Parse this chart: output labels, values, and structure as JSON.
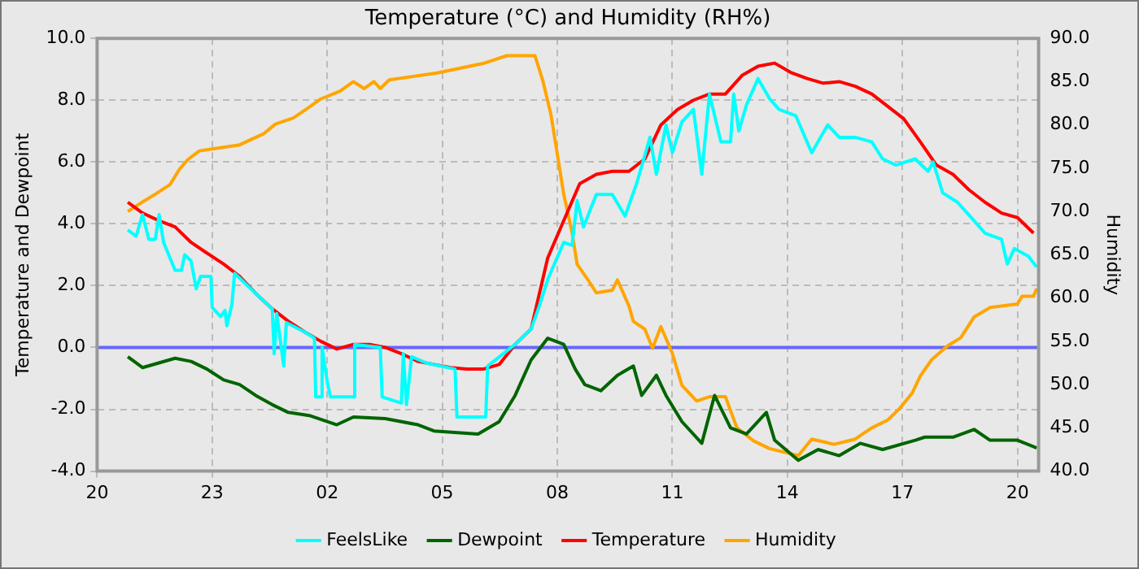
{
  "chart_data": {
    "type": "line",
    "title": "Temperature (°C) and Humidity (RH%)",
    "ylabel": "Temperature and Dewpoint",
    "y2label": "Humidity",
    "xlim": [
      "--01-01T20:00",
      "--01-02T20:33"
    ],
    "xticks": [
      {
        "value": "--01-01T20:00",
        "label": "20"
      },
      {
        "value": "--01-01T23:00",
        "label": "23"
      },
      {
        "value": "--01-02T02:00",
        "label": "02"
      },
      {
        "value": "--01-02T05:00",
        "label": "05"
      },
      {
        "value": "--01-02T08:00",
        "label": "08"
      },
      {
        "value": "--01-02T11:00",
        "label": "11"
      },
      {
        "value": "--01-02T14:00",
        "label": "14"
      },
      {
        "value": "--01-02T17:00",
        "label": "17"
      },
      {
        "value": "--01-02T20:00",
        "label": "20"
      }
    ],
    "ylim": [
      -4,
      10
    ],
    "yticks": [
      {
        "value": -4,
        "label": "-4.0"
      },
      {
        "value": -2,
        "label": "-2.0"
      },
      {
        "value": 0,
        "label": "0.0"
      },
      {
        "value": 2,
        "label": "2.0"
      },
      {
        "value": 4,
        "label": "4.0"
      },
      {
        "value": 6,
        "label": "6.0"
      },
      {
        "value": 8,
        "label": "8.0"
      },
      {
        "value": 10,
        "label": "10.0"
      }
    ],
    "y2lim": [
      40,
      90
    ],
    "y2ticks": [
      {
        "value": 40,
        "label": "40.0"
      },
      {
        "value": 45,
        "label": "45.0"
      },
      {
        "value": 50,
        "label": "50.0"
      },
      {
        "value": 55,
        "label": "55.0"
      },
      {
        "value": 60,
        "label": "60.0"
      },
      {
        "value": 65,
        "label": "65.0"
      },
      {
        "value": 70,
        "label": "70.0"
      },
      {
        "value": 75,
        "label": "75.0"
      },
      {
        "value": 80,
        "label": "80.0"
      },
      {
        "value": 85,
        "label": "85.0"
      },
      {
        "value": 90,
        "label": "90.0"
      }
    ],
    "grid": true,
    "legend": "bottom",
    "marker": "none",
    "line_style": "solid",
    "ref_lines": [
      {
        "axis": "y",
        "value": 0,
        "color": "#6666ff"
      }
    ],
    "series": [
      {
        "name": "FeelsLike",
        "color": "#00ffff",
        "x": [
          "--01-01T20:48",
          "--01-01T21:01",
          "--01-01T21:11",
          "--01-01T21:21",
          "--01-01T21:31",
          "--01-01T21:37",
          "--01-01T21:44",
          "--01-01T21:54",
          "--01-01T22:02",
          "--01-01T22:12",
          "--01-01T22:17",
          "--01-01T22:27",
          "--01-01T22:35",
          "--01-01T22:42",
          "--01-01T22:58",
          "--01-01T23:00",
          "--01-01T23:13",
          "--01-01T23:20",
          "--01-01T23:23",
          "--01-01T23:31",
          "--01-01T23:35",
          "--01-02T00:08",
          "--01-02T00:34",
          "--01-02T00:37",
          "--01-02T00:41",
          "--01-02T00:52",
          "--01-02T00:56",
          "--01-02T01:25",
          "--01-02T01:40",
          "--01-02T01:42",
          "--01-02T01:50",
          "--01-02T01:52",
          "--01-02T02:00",
          "--01-02T02:05",
          "--01-02T02:41",
          "--01-02T02:43",
          "--01-02T03:23",
          "--01-02T03:26",
          "--01-02T03:56",
          "--01-02T03:59",
          "--01-02T04:04",
          "--01-02T04:12",
          "--01-02T04:35",
          "--01-02T05:20",
          "--01-02T05:23",
          "--01-02T06:08",
          "--01-02T06:11",
          "--01-02T06:54",
          "--01-02T07:19",
          "--01-02T07:32",
          "--01-02T07:45",
          "--01-02T08:10",
          "--01-02T08:23",
          "--01-02T08:31",
          "--01-02T08:41",
          "--01-02T09:01",
          "--01-02T09:26",
          "--01-02T09:46",
          "--01-02T10:04",
          "--01-02T10:25",
          "--01-02T10:35",
          "--01-02T10:50",
          "--01-02T11:00",
          "--01-02T11:15",
          "--01-02T11:33",
          "--01-02T11:46",
          "--01-02T11:58",
          "--01-02T12:16",
          "--01-02T12:31",
          "--01-02T12:36",
          "--01-02T12:44",
          "--01-02T12:56",
          "--01-02T13:14",
          "--01-02T13:32",
          "--01-02T13:47",
          "--01-02T14:13",
          "--01-02T14:38",
          "--01-02T15:03",
          "--01-02T15:21",
          "--01-02T15:46",
          "--01-02T16:12",
          "--01-02T16:29",
          "--01-02T16:50",
          "--01-02T17:20",
          "--01-02T17:40",
          "--01-02T17:48",
          "--01-02T18:03",
          "--01-02T18:26",
          "--01-02T18:52",
          "--01-02T19:09",
          "--01-02T19:35",
          "--01-02T19:44",
          "--01-02T19:55",
          "--01-02T20:17",
          "--01-02T20:30"
        ],
        "values": [
          3.8,
          3.6,
          4.3,
          3.5,
          3.5,
          4.3,
          3.4,
          2.9,
          2.5,
          2.5,
          3.0,
          2.8,
          1.9,
          2.3,
          2.3,
          1.3,
          1.0,
          1.2,
          0.7,
          1.4,
          2.4,
          1.75,
          1.25,
          -0.2,
          1.1,
          -0.6,
          0.8,
          0.5,
          0.3,
          -1.6,
          -1.6,
          0.0,
          -1.1,
          -1.6,
          -1.6,
          0.1,
          0.0,
          -1.6,
          -1.8,
          -0.2,
          -1.85,
          -0.3,
          -0.5,
          -0.7,
          -2.25,
          -2.25,
          -0.6,
          0.1,
          0.6,
          1.35,
          2.2,
          3.4,
          3.3,
          4.75,
          3.9,
          4.95,
          4.95,
          4.25,
          5.3,
          6.8,
          5.6,
          7.2,
          6.3,
          7.3,
          7.7,
          5.6,
          8.2,
          6.65,
          6.65,
          8.2,
          7.0,
          7.85,
          8.7,
          8.05,
          7.7,
          7.5,
          6.3,
          7.2,
          6.8,
          6.8,
          6.65,
          6.1,
          5.9,
          6.1,
          5.7,
          6.0,
          5.0,
          4.7,
          4.1,
          3.7,
          3.5,
          2.7,
          3.2,
          2.95,
          2.6
        ]
      },
      {
        "name": "Dewpoint",
        "color": "#006400",
        "x": [
          "--01-01T20:48",
          "--01-01T21:11",
          "--01-01T22:02",
          "--01-01T22:27",
          "--01-01T22:52",
          "--01-01T23:18",
          "--01-01T23:43",
          "--01-02T00:08",
          "--01-02T00:34",
          "--01-02T00:59",
          "--01-02T01:32",
          "--01-02T02:15",
          "--01-02T02:41",
          "--01-02T03:31",
          "--01-02T04:22",
          "--01-02T04:47",
          "--01-02T05:56",
          "--01-02T06:29",
          "--01-02T06:54",
          "--01-02T07:19",
          "--01-02T07:45",
          "--01-02T08:10",
          "--01-02T08:28",
          "--01-02T08:43",
          "--01-02T09:08",
          "--01-02T09:34",
          "--01-02T09:59",
          "--01-02T10:12",
          "--01-02T10:35",
          "--01-02T10:50",
          "--01-02T11:15",
          "--01-02T11:46",
          "--01-02T12:06",
          "--01-02T12:31",
          "--01-02T12:56",
          "--01-02T13:27",
          "--01-02T13:40",
          "--01-02T14:17",
          "--01-02T14:48",
          "--01-02T15:21",
          "--01-02T15:54",
          "--01-02T16:29",
          "--01-02T17:20",
          "--01-02T17:35",
          "--01-02T18:19",
          "--01-02T18:52",
          "--01-02T19:17",
          "--01-02T20:00",
          "--01-02T20:30"
        ],
        "values": [
          -0.3,
          -0.65,
          -0.35,
          -0.45,
          -0.7,
          -1.05,
          -1.2,
          -1.55,
          -1.85,
          -2.1,
          -2.2,
          -2.5,
          -2.25,
          -2.3,
          -2.5,
          -2.7,
          -2.8,
          -2.4,
          -1.55,
          -0.4,
          0.3,
          0.1,
          -0.7,
          -1.2,
          -1.4,
          -0.9,
          -0.6,
          -1.55,
          -0.9,
          -1.55,
          -2.4,
          -3.1,
          -1.55,
          -2.6,
          -2.8,
          -2.1,
          -3.0,
          -3.65,
          -3.3,
          -3.5,
          -3.1,
          -3.3,
          -3.0,
          -2.9,
          -2.9,
          -2.65,
          -3.0,
          -3.0,
          -3.25
        ]
      },
      {
        "name": "Temperature",
        "color": "#ff0000",
        "x": [
          "--01-01T20:48",
          "--01-01T21:11",
          "--01-01T21:37",
          "--01-01T22:02",
          "--01-01T22:27",
          "--01-01T22:52",
          "--01-01T23:18",
          "--01-01T23:43",
          "--01-02T00:08",
          "--01-02T00:34",
          "--01-02T00:59",
          "--01-02T01:25",
          "--01-02T01:50",
          "--01-02T02:15",
          "--01-02T02:41",
          "--01-02T03:06",
          "--01-02T03:31",
          "--01-02T03:56",
          "--01-02T04:22",
          "--01-02T04:47",
          "--01-02T05:13",
          "--01-02T05:38",
          "--01-02T06:04",
          "--01-02T06:29",
          "--01-02T06:54",
          "--01-02T07:19",
          "--01-02T07:45",
          "--01-02T08:10",
          "--01-02T08:35",
          "--01-02T09:01",
          "--01-02T09:26",
          "--01-02T09:52",
          "--01-02T10:17",
          "--01-02T10:42",
          "--01-02T11:08",
          "--01-02T11:33",
          "--01-02T11:58",
          "--01-02T12:23",
          "--01-02T12:49",
          "--01-02T13:14",
          "--01-02T13:40",
          "--01-02T14:05",
          "--01-02T14:31",
          "--01-02T14:56",
          "--01-02T15:21",
          "--01-02T15:46",
          "--01-02T16:12",
          "--01-02T16:37",
          "--01-02T17:02",
          "--01-02T17:28",
          "--01-02T17:53",
          "--01-02T18:19",
          "--01-02T18:44",
          "--01-02T19:09",
          "--01-02T19:35",
          "--01-02T20:00",
          "--01-02T20:25"
        ],
        "values": [
          4.7,
          4.35,
          4.1,
          3.9,
          3.4,
          3.05,
          2.7,
          2.3,
          1.75,
          1.25,
          0.85,
          0.5,
          0.2,
          -0.05,
          0.1,
          0.1,
          0.0,
          -0.2,
          -0.45,
          -0.55,
          -0.65,
          -0.7,
          -0.7,
          -0.55,
          0.1,
          0.6,
          2.9,
          4.1,
          5.3,
          5.6,
          5.7,
          5.7,
          6.1,
          7.2,
          7.7,
          8.0,
          8.2,
          8.2,
          8.8,
          9.1,
          9.2,
          8.9,
          8.7,
          8.55,
          8.6,
          8.45,
          8.2,
          7.8,
          7.4,
          6.65,
          5.9,
          5.6,
          5.1,
          4.7,
          4.35,
          4.2,
          3.7
        ]
      },
      {
        "name": "Humidity",
        "color": "#ffa500",
        "axis": "y2",
        "x": [
          "--01-01T20:48",
          "--01-01T21:11",
          "--01-01T21:31",
          "--01-01T21:54",
          "--01-01T22:09",
          "--01-01T22:22",
          "--01-01T22:40",
          "--01-01T23:43",
          "--01-02T00:21",
          "--01-02T00:39",
          "--01-02T01:07",
          "--01-02T01:29",
          "--01-02T01:50",
          "--01-02T02:20",
          "--01-02T02:41",
          "--01-02T02:58",
          "--01-02T03:13",
          "--01-02T03:23",
          "--01-02T03:37",
          "--01-02T04:52",
          "--01-02T06:04",
          "--01-02T06:41",
          "--01-02T07:25",
          "--01-02T07:37",
          "--01-02T07:50",
          "--01-02T08:02",
          "--01-02T08:10",
          "--01-02T08:23",
          "--01-02T08:31",
          "--01-02T08:48",
          "--01-02T09:01",
          "--01-02T09:26",
          "--01-02T09:34",
          "--01-02T09:52",
          "--01-02T09:59",
          "--01-02T10:17",
          "--01-02T10:29",
          "--01-02T10:42",
          "--01-02T11:00",
          "--01-02T11:15",
          "--01-02T11:38",
          "--01-02T11:58",
          "--01-02T12:23",
          "--01-02T12:41",
          "--01-02T13:07",
          "--01-02T13:32",
          "--01-02T14:17",
          "--01-02T14:38",
          "--01-02T15:13",
          "--01-02T15:46",
          "--01-02T16:12",
          "--01-02T16:37",
          "--01-02T16:55",
          "--01-02T17:15",
          "--01-02T17:28",
          "--01-02T17:46",
          "--01-02T18:11",
          "--01-02T18:31",
          "--01-02T18:52",
          "--01-02T19:17",
          "--01-02T20:00",
          "--01-02T20:07",
          "--01-02T20:25",
          "--01-02T20:30"
        ],
        "values": [
          70.0,
          71.1,
          72.0,
          73.1,
          74.9,
          76.0,
          77.0,
          77.7,
          79.0,
          80.1,
          80.8,
          81.9,
          83.0,
          83.9,
          85.0,
          84.2,
          85.0,
          84.2,
          85.2,
          86.0,
          87.1,
          88.0,
          88.0,
          85.2,
          81.2,
          75.7,
          72.0,
          67.6,
          63.9,
          62.1,
          60.6,
          60.9,
          62.1,
          59.1,
          57.3,
          56.4,
          54.2,
          56.7,
          53.6,
          49.9,
          48.1,
          48.6,
          48.6,
          45.0,
          43.5,
          42.6,
          41.8,
          43.7,
          43.1,
          43.7,
          45.0,
          45.9,
          47.2,
          49.0,
          51.0,
          52.9,
          54.5,
          55.4,
          57.8,
          58.9,
          59.3,
          60.2,
          60.2,
          61.1
        ]
      }
    ]
  }
}
